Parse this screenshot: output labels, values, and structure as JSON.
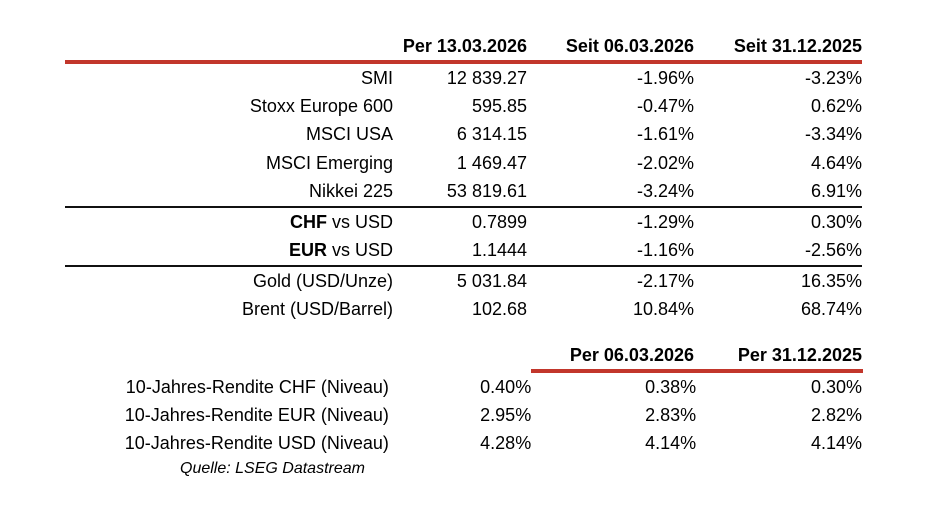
{
  "colors": {
    "accent_red": "#c2362b",
    "text": "#000000"
  },
  "main_table": {
    "col_headers": [
      "Per 13.03.2026",
      "Seit 06.03.2026",
      "Seit 31.12.2025"
    ],
    "indices": {
      "rows": [
        {
          "label": "SMI",
          "values": [
            "12 839.27",
            "-1.96%",
            "-3.23%"
          ]
        },
        {
          "label": "Stoxx Europe 600",
          "values": [
            "595.85",
            "-0.47%",
            "0.62%"
          ]
        },
        {
          "label": "MSCI USA",
          "values": [
            "6 314.15",
            "-1.61%",
            "-3.34%"
          ]
        },
        {
          "label": "MSCI Emerging",
          "values": [
            "1 469.47",
            "-2.02%",
            "4.64%"
          ]
        },
        {
          "label": "Nikkei 225",
          "values": [
            "53 819.61",
            "-3.24%",
            "6.91%"
          ]
        }
      ]
    },
    "currencies": {
      "rows": [
        {
          "label_bold": "CHF",
          "label_rest": "vs USD",
          "values": [
            "0.7899",
            "-1.29%",
            "0.30%"
          ]
        },
        {
          "label_bold": "EUR",
          "label_rest": "vs USD",
          "values": [
            "1.1444",
            "-1.16%",
            "-2.56%"
          ]
        }
      ]
    },
    "commodities": {
      "rows": [
        {
          "label": "Gold (USD/Unze)",
          "values": [
            "5 031.84",
            "-2.17%",
            "16.35%"
          ]
        },
        {
          "label": "Brent (USD/Barrel)",
          "values": [
            "102.68",
            "10.84%",
            "68.74%"
          ]
        }
      ]
    }
  },
  "yields_table": {
    "col_headers": [
      "Per 06.03.2026",
      "Per 31.12.2025"
    ],
    "rows": [
      {
        "label": "10-Jahres-Rendite CHF (Niveau)",
        "values": [
          "0.40%",
          "0.38%",
          "0.30%"
        ]
      },
      {
        "label": "10-Jahres-Rendite EUR (Niveau)",
        "values": [
          "2.95%",
          "2.83%",
          "2.82%"
        ]
      },
      {
        "label": "10-Jahres-Rendite USD (Niveau)",
        "values": [
          "4.28%",
          "4.14%",
          "4.14%"
        ]
      }
    ]
  },
  "footer": {
    "source": "Quelle: LSEG Datastream"
  }
}
